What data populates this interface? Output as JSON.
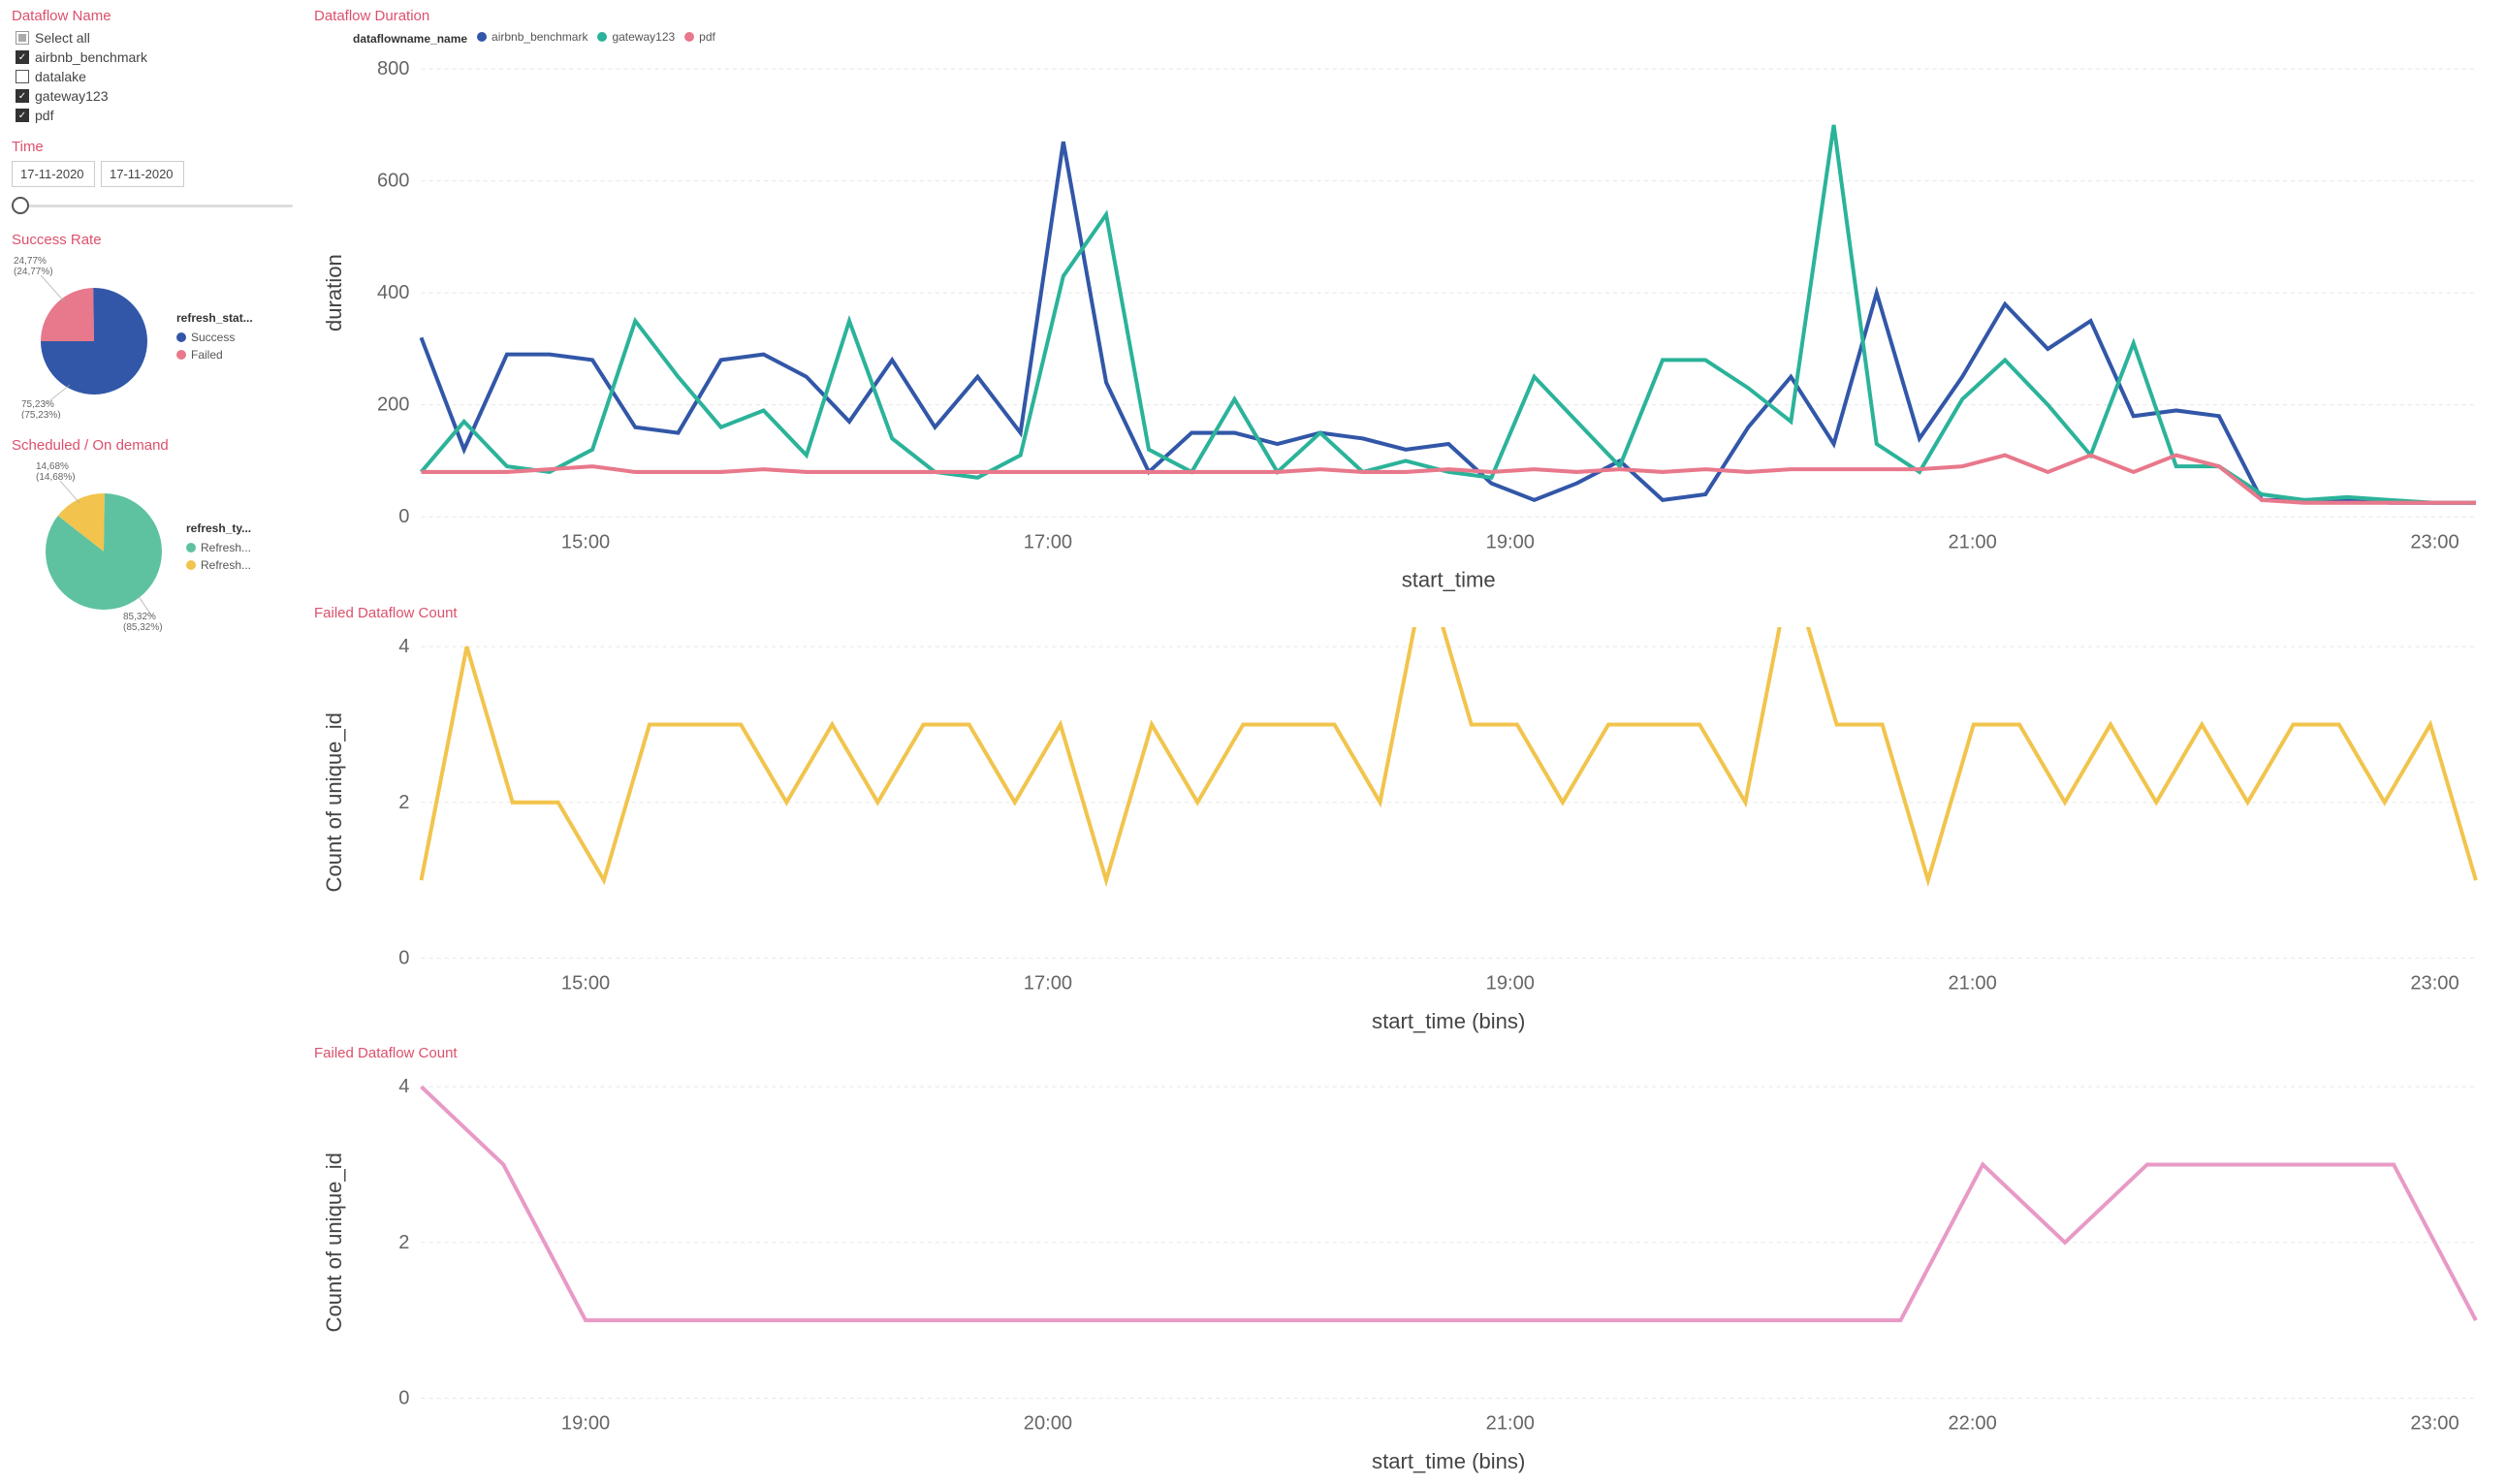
{
  "sidebar": {
    "dataflow_name": {
      "title": "Dataflow Name",
      "select_all_label": "Select all",
      "items": [
        {
          "label": "airbnb_benchmark",
          "checked": true
        },
        {
          "label": "datalake",
          "checked": false
        },
        {
          "label": "gateway123",
          "checked": true
        },
        {
          "label": "pdf",
          "checked": true
        }
      ]
    },
    "time": {
      "title": "Time",
      "from": "17-11-2020",
      "to": "17-11-2020"
    },
    "success_rate": {
      "title": "Success Rate",
      "legend_title": "refresh_stat...",
      "slices": [
        {
          "label": "Success",
          "value": 75.23,
          "pct_text": "75,23%",
          "sub_text": "(75,23%)",
          "color": "#3257a8"
        },
        {
          "label": "Failed",
          "value": 24.77,
          "pct_text": "24,77%",
          "sub_text": "(24,77%)",
          "color": "#e8788b"
        }
      ]
    },
    "scheduled": {
      "title": "Scheduled / On demand",
      "legend_title": "refresh_ty...",
      "slices": [
        {
          "label": "Refresh...",
          "value": 85.32,
          "pct_text": "85,32%",
          "sub_text": "(85,32%)",
          "color": "#5ec2a0"
        },
        {
          "label": "Refresh...",
          "value": 14.68,
          "pct_text": "14,68%",
          "sub_text": "(14,68%)",
          "color": "#f2c44d"
        }
      ]
    }
  },
  "charts": {
    "duration": {
      "title": "Dataflow Duration",
      "type": "line",
      "series_label": "dataflowname_name",
      "ylabel": "duration",
      "xlabel": "start_time",
      "ylim": [
        0,
        800
      ],
      "ytick_step": 200,
      "xticks": [
        "15:00",
        "17:00",
        "19:00",
        "21:00",
        "23:00"
      ],
      "background_color": "#ffffff",
      "grid_color": "#e8e8e8",
      "line_width": 2,
      "series": [
        {
          "name": "airbnb_benchmark",
          "color": "#3257a8",
          "values": [
            320,
            120,
            290,
            290,
            280,
            160,
            150,
            280,
            290,
            250,
            170,
            280,
            160,
            250,
            150,
            670,
            240,
            80,
            150,
            150,
            130,
            150,
            140,
            120,
            130,
            60,
            30,
            60,
            100,
            30,
            40,
            160,
            250,
            130,
            400,
            140,
            250,
            380,
            300,
            350,
            180,
            190,
            180,
            30,
            30,
            30,
            25,
            25,
            25
          ]
        },
        {
          "name": "gateway123",
          "color": "#2bb39a",
          "values": [
            80,
            170,
            90,
            80,
            120,
            350,
            250,
            160,
            190,
            110,
            350,
            140,
            80,
            70,
            110,
            430,
            540,
            120,
            80,
            210,
            80,
            150,
            80,
            100,
            80,
            70,
            250,
            170,
            90,
            280,
            280,
            230,
            170,
            700,
            130,
            80,
            210,
            280,
            200,
            110,
            310,
            90,
            90,
            40,
            30,
            35,
            30,
            25,
            25
          ]
        },
        {
          "name": "pdf",
          "color": "#e8788b",
          "values": [
            80,
            80,
            80,
            85,
            90,
            80,
            80,
            80,
            85,
            80,
            80,
            80,
            80,
            80,
            80,
            80,
            80,
            80,
            80,
            80,
            80,
            85,
            80,
            80,
            85,
            80,
            85,
            80,
            85,
            80,
            85,
            80,
            85,
            85,
            85,
            85,
            90,
            110,
            80,
            110,
            80,
            110,
            90,
            30,
            25,
            25,
            25,
            25,
            25
          ]
        }
      ]
    },
    "failed_count_1": {
      "title": "Failed Dataflow Count",
      "type": "line",
      "ylabel": "Count of unique_id",
      "xlabel": "start_time (bins)",
      "ylim": [
        0,
        4
      ],
      "ytick_step": 2,
      "xticks": [
        "15:00",
        "17:00",
        "19:00",
        "21:00",
        "23:00"
      ],
      "color": "#f2c44d",
      "line_width": 2,
      "values": [
        1,
        4,
        2,
        2,
        1,
        3,
        3,
        3,
        2,
        3,
        2,
        3,
        3,
        2,
        3,
        1,
        3,
        2,
        3,
        3,
        3,
        2,
        5,
        3,
        3,
        2,
        3,
        3,
        3,
        2,
        5,
        3,
        3,
        1,
        3,
        3,
        2,
        3,
        2,
        3,
        2,
        3,
        3,
        2,
        3,
        1
      ]
    },
    "failed_count_2": {
      "title": "Failed Dataflow Count",
      "type": "line",
      "ylabel": "Count of unique_id",
      "xlabel": "start_time (bins)",
      "ylim": [
        0,
        4
      ],
      "ytick_step": 2,
      "xticks": [
        "19:00",
        "20:00",
        "21:00",
        "22:00",
        "23:00"
      ],
      "color": "#e89ac7",
      "line_width": 2,
      "values": [
        4,
        3,
        1,
        1,
        1,
        1,
        1,
        1,
        1,
        1,
        1,
        1,
        1,
        1,
        1,
        1,
        1,
        1,
        1,
        3,
        2,
        3,
        3,
        3,
        3,
        1
      ]
    }
  },
  "colors": {
    "title": "#dc506c",
    "text": "#444444"
  }
}
